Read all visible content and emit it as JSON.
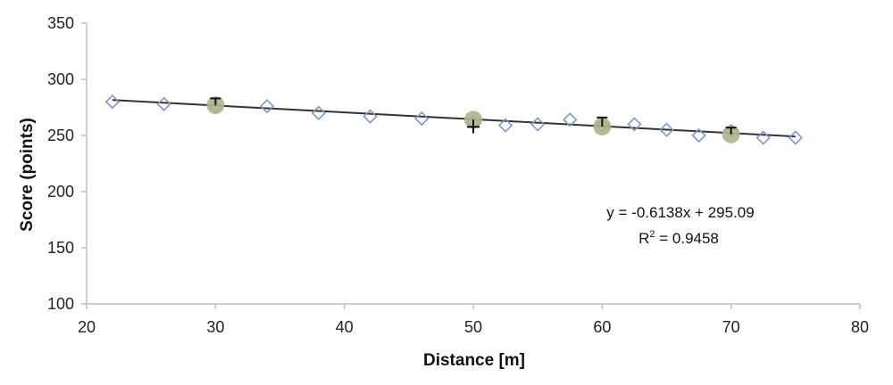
{
  "chart_data": {
    "type": "scatter",
    "title": "",
    "xlabel": "Distance  [m]",
    "ylabel": "Score (points)",
    "xlim": [
      20,
      80
    ],
    "ylim": [
      100,
      350
    ],
    "xticks": [
      "20",
      "30",
      "40",
      "50",
      "60",
      "70",
      "80"
    ],
    "yticks": [
      "100",
      "150",
      "200",
      "250",
      "300",
      "350"
    ],
    "grid": false,
    "legend": "none",
    "series": [
      {
        "marker": "diamond",
        "color": "#7f97c8",
        "x": [
          22,
          26,
          30,
          34,
          38,
          42,
          46,
          50,
          52.5,
          55,
          57.5,
          60,
          62.5,
          65,
          67.5,
          70,
          72.5,
          75
        ],
        "y": [
          280,
          278,
          276,
          276,
          270,
          267,
          265,
          262,
          259,
          260,
          264,
          259,
          260,
          255,
          250,
          254,
          248,
          248
        ]
      },
      {
        "marker": "circle",
        "color": "#aab58a",
        "x": [
          30,
          50,
          60,
          70
        ],
        "y": [
          277,
          264,
          258,
          251
        ],
        "err_up": [
          6,
          0,
          8,
          6
        ],
        "err_down": [
          0,
          12,
          0,
          0
        ]
      }
    ],
    "trendline": {
      "slope": -0.6138,
      "intercept": 295.09,
      "x_range": [
        22,
        75
      ],
      "equation": "y = -0.6138x + 295.09",
      "r2_prefix": "R",
      "r2_sup": "2",
      "r2_value": " = 0.9458"
    },
    "colors": {
      "axis": "#bfbfbf",
      "trend": "#333333",
      "errorbar": "#111111"
    }
  }
}
